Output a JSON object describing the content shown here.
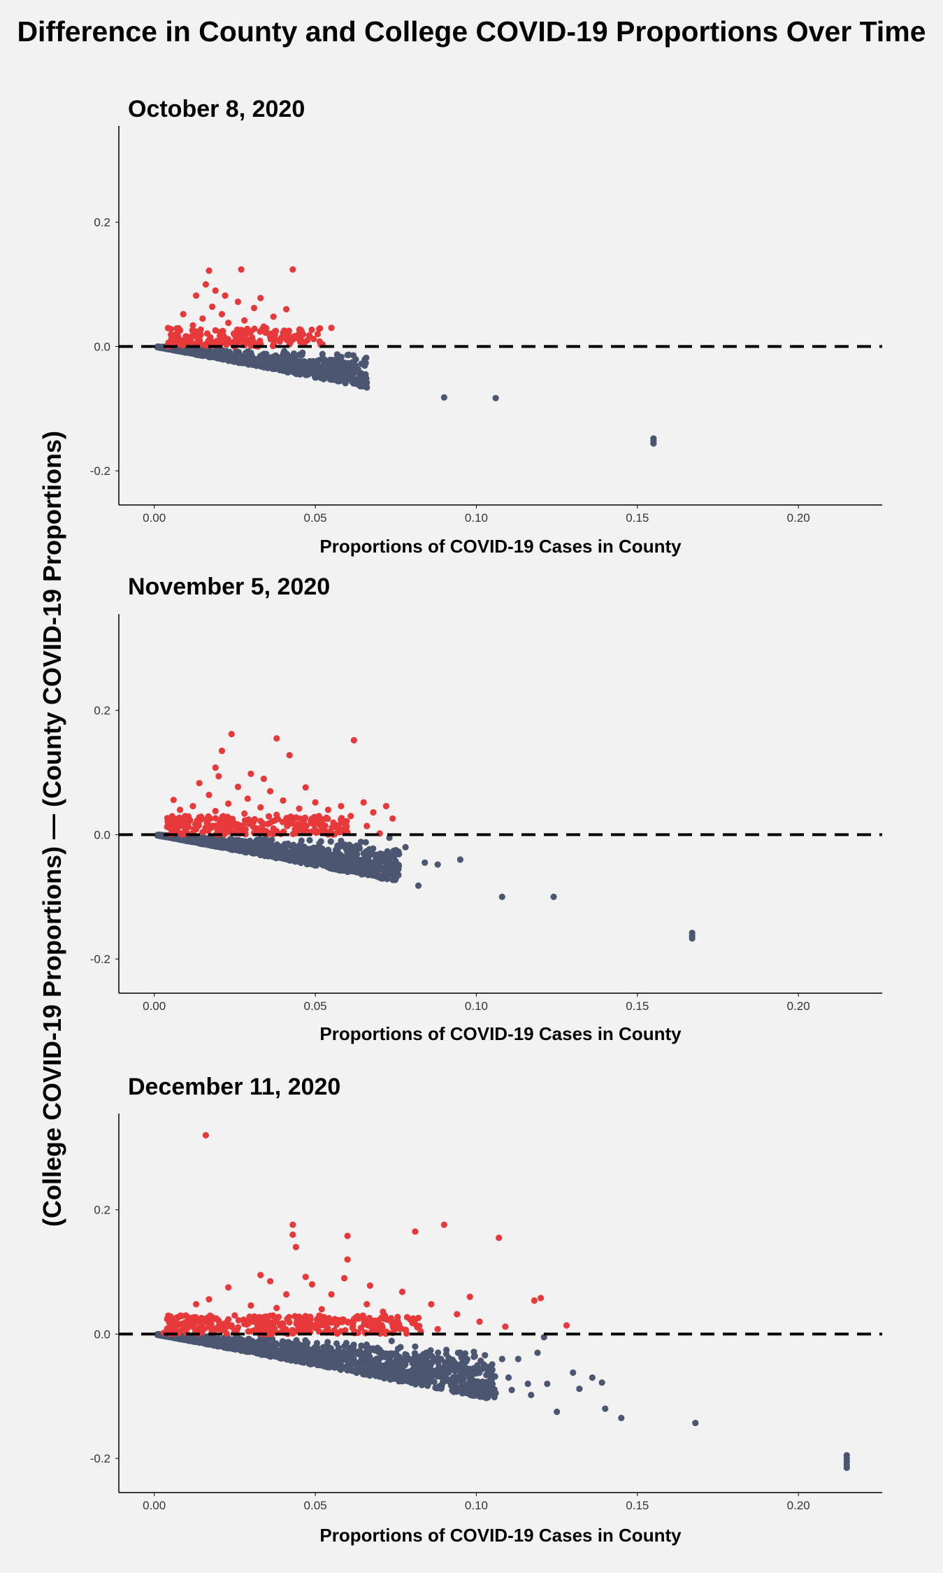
{
  "figure": {
    "title": "Difference in County and College COVID-19 Proportions Over Time",
    "ylabel": "(College COVID-19 Proportions) — (County COVID-19 Proportions)"
  },
  "colors": {
    "above_zero": "#e8393a",
    "below_zero": "#4b5670",
    "zero_line": "#000000",
    "background": "#f2f2f2"
  },
  "chart_data": [
    {
      "type": "scatter",
      "title": "October 8, 2020",
      "xlabel": "Proportions of COVID-19 Cases in County",
      "xlim": [
        -0.011,
        0.226
      ],
      "ylim": [
        -0.255,
        0.355
      ],
      "xticks": [
        0.0,
        0.05,
        0.1,
        0.15,
        0.2
      ],
      "xtick_labels": [
        "0.00",
        "0.05",
        "0.10",
        "0.15",
        "0.20"
      ],
      "yticks": [
        -0.2,
        0.0,
        0.2
      ],
      "ytick_labels": [
        "-0.2",
        "0.0",
        "0.2"
      ],
      "reference_line_y": 0.0,
      "grid": false,
      "max_x": 0.065,
      "points": [
        [
          0.017,
          0.122
        ],
        [
          0.027,
          0.124
        ],
        [
          0.043,
          0.124
        ],
        [
          0.016,
          0.1
        ],
        [
          0.019,
          0.09
        ],
        [
          0.013,
          0.082
        ],
        [
          0.022,
          0.082
        ],
        [
          0.033,
          0.078
        ],
        [
          0.026,
          0.072
        ],
        [
          0.018,
          0.064
        ],
        [
          0.031,
          0.062
        ],
        [
          0.041,
          0.06
        ],
        [
          0.009,
          0.052
        ],
        [
          0.021,
          0.052
        ],
        [
          0.037,
          0.048
        ],
        [
          0.015,
          0.045
        ],
        [
          0.028,
          0.042
        ],
        [
          0.023,
          0.038
        ],
        [
          0.012,
          0.034
        ],
        [
          0.034,
          0.032
        ],
        [
          0.055,
          0.03
        ],
        [
          0.008,
          0.026
        ],
        [
          0.019,
          0.026
        ],
        [
          0.03,
          0.024
        ],
        [
          0.04,
          0.022
        ],
        [
          0.025,
          0.02
        ],
        [
          0.014,
          0.018
        ],
        [
          0.036,
          0.016
        ],
        [
          0.011,
          0.014
        ],
        [
          0.022,
          0.014
        ],
        [
          0.045,
          0.012
        ],
        [
          0.03,
          0.01
        ],
        [
          0.006,
          0.008
        ],
        [
          0.017,
          0.008
        ],
        [
          0.039,
          0.008
        ],
        [
          0.024,
          0.006
        ],
        [
          0.009,
          0.004
        ],
        [
          0.033,
          0.004
        ],
        [
          0.042,
          0.004
        ],
        [
          0.013,
          0.003
        ],
        [
          0.02,
          0.002
        ],
        [
          0.028,
          0.002
        ],
        [
          0.046,
          -0.01
        ],
        [
          0.052,
          -0.02
        ],
        [
          0.055,
          -0.03
        ],
        [
          0.054,
          -0.034
        ],
        [
          0.056,
          -0.04
        ],
        [
          0.058,
          -0.046
        ],
        [
          0.06,
          -0.052
        ],
        [
          0.062,
          -0.055
        ],
        [
          0.064,
          -0.06
        ],
        [
          0.063,
          -0.038
        ],
        [
          0.061,
          -0.032
        ],
        [
          0.058,
          -0.028
        ],
        [
          0.09,
          -0.082
        ],
        [
          0.106,
          -0.083
        ],
        [
          0.155,
          -0.148
        ],
        [
          0.155,
          -0.152
        ],
        [
          0.155,
          -0.156
        ],
        [
          0.048,
          -0.044
        ],
        [
          0.05,
          -0.05
        ],
        [
          0.044,
          -0.036
        ]
      ]
    },
    {
      "type": "scatter",
      "title": "November 5, 2020",
      "xlabel": "Proportions of COVID-19 Cases in County",
      "xlim": [
        -0.011,
        0.226
      ],
      "ylim": [
        -0.255,
        0.355
      ],
      "xticks": [
        0.0,
        0.05,
        0.1,
        0.15,
        0.2
      ],
      "xtick_labels": [
        "0.00",
        "0.05",
        "0.10",
        "0.15",
        "0.20"
      ],
      "yticks": [
        -0.2,
        0.0,
        0.2
      ],
      "ytick_labels": [
        "-0.2",
        "0.0",
        "0.2"
      ],
      "reference_line_y": 0.0,
      "grid": false,
      "max_x": 0.075,
      "points": [
        [
          0.024,
          0.162
        ],
        [
          0.038,
          0.155
        ],
        [
          0.062,
          0.152
        ],
        [
          0.021,
          0.135
        ],
        [
          0.042,
          0.128
        ],
        [
          0.019,
          0.108
        ],
        [
          0.03,
          0.098
        ],
        [
          0.02,
          0.094
        ],
        [
          0.034,
          0.09
        ],
        [
          0.014,
          0.083
        ],
        [
          0.026,
          0.077
        ],
        [
          0.047,
          0.076
        ],
        [
          0.036,
          0.07
        ],
        [
          0.017,
          0.064
        ],
        [
          0.029,
          0.058
        ],
        [
          0.006,
          0.056
        ],
        [
          0.04,
          0.055
        ],
        [
          0.05,
          0.052
        ],
        [
          0.065,
          0.052
        ],
        [
          0.023,
          0.05
        ],
        [
          0.012,
          0.046
        ],
        [
          0.058,
          0.046
        ],
        [
          0.072,
          0.046
        ],
        [
          0.033,
          0.044
        ],
        [
          0.045,
          0.042
        ],
        [
          0.008,
          0.04
        ],
        [
          0.054,
          0.04
        ],
        [
          0.019,
          0.038
        ],
        [
          0.068,
          0.036
        ],
        [
          0.028,
          0.034
        ],
        [
          0.038,
          0.032
        ],
        [
          0.061,
          0.03
        ],
        [
          0.014,
          0.028
        ],
        [
          0.074,
          0.026
        ],
        [
          0.049,
          0.026
        ],
        [
          0.023,
          0.024
        ],
        [
          0.033,
          0.022
        ],
        [
          0.01,
          0.018
        ],
        [
          0.043,
          0.018
        ],
        [
          0.056,
          0.016
        ],
        [
          0.066,
          0.014
        ],
        [
          0.018,
          0.012
        ],
        [
          0.027,
          0.012
        ],
        [
          0.037,
          0.01
        ],
        [
          0.052,
          0.01
        ],
        [
          0.007,
          0.008
        ],
        [
          0.047,
          0.006
        ],
        [
          0.059,
          0.004
        ],
        [
          0.015,
          0.004
        ],
        [
          0.031,
          0.003
        ],
        [
          0.07,
          0.002
        ],
        [
          0.063,
          -0.04
        ],
        [
          0.068,
          -0.055
        ],
        [
          0.071,
          -0.065
        ],
        [
          0.075,
          -0.07
        ],
        [
          0.066,
          -0.05
        ],
        [
          0.06,
          -0.042
        ],
        [
          0.078,
          -0.02
        ],
        [
          0.084,
          -0.045
        ],
        [
          0.088,
          -0.048
        ],
        [
          0.095,
          -0.04
        ],
        [
          0.082,
          -0.082
        ],
        [
          0.108,
          -0.1
        ],
        [
          0.124,
          -0.1
        ],
        [
          0.167,
          -0.158
        ],
        [
          0.167,
          -0.163
        ],
        [
          0.167,
          -0.167
        ],
        [
          0.058,
          -0.01
        ],
        [
          0.054,
          -0.035
        ],
        [
          0.05,
          -0.03
        ],
        [
          0.073,
          -0.005
        ]
      ]
    },
    {
      "type": "scatter",
      "title": "December 11, 2020",
      "xlabel": "Proportions of COVID-19 Cases in County",
      "xlim": [
        -0.011,
        0.226
      ],
      "ylim": [
        -0.255,
        0.355
      ],
      "xticks": [
        0.0,
        0.05,
        0.1,
        0.15,
        0.2
      ],
      "xtick_labels": [
        "0.00",
        "0.05",
        "0.10",
        "0.15",
        "0.20"
      ],
      "yticks": [
        -0.2,
        0.0,
        0.2
      ],
      "ytick_labels": [
        "-0.2",
        "0.0",
        "0.2"
      ],
      "reference_line_y": 0.0,
      "grid": false,
      "max_x": 0.105,
      "points": [
        [
          0.016,
          0.32
        ],
        [
          0.043,
          0.176
        ],
        [
          0.09,
          0.176
        ],
        [
          0.081,
          0.165
        ],
        [
          0.06,
          0.158
        ],
        [
          0.043,
          0.16
        ],
        [
          0.044,
          0.14
        ],
        [
          0.107,
          0.155
        ],
        [
          0.06,
          0.12
        ],
        [
          0.033,
          0.095
        ],
        [
          0.047,
          0.092
        ],
        [
          0.059,
          0.09
        ],
        [
          0.036,
          0.085
        ],
        [
          0.049,
          0.08
        ],
        [
          0.067,
          0.078
        ],
        [
          0.023,
          0.075
        ],
        [
          0.077,
          0.068
        ],
        [
          0.041,
          0.064
        ],
        [
          0.055,
          0.064
        ],
        [
          0.017,
          0.056
        ],
        [
          0.098,
          0.06
        ],
        [
          0.118,
          0.054
        ],
        [
          0.12,
          0.058
        ],
        [
          0.013,
          0.048
        ],
        [
          0.03,
          0.046
        ],
        [
          0.066,
          0.048
        ],
        [
          0.086,
          0.048
        ],
        [
          0.038,
          0.042
        ],
        [
          0.052,
          0.04
        ],
        [
          0.071,
          0.036
        ],
        [
          0.094,
          0.032
        ],
        [
          0.025,
          0.03
        ],
        [
          0.045,
          0.028
        ],
        [
          0.082,
          0.026
        ],
        [
          0.062,
          0.024
        ],
        [
          0.034,
          0.022
        ],
        [
          0.101,
          0.02
        ],
        [
          0.015,
          0.018
        ],
        [
          0.057,
          0.018
        ],
        [
          0.076,
          0.016
        ],
        [
          0.128,
          0.014
        ],
        [
          0.024,
          0.014
        ],
        [
          0.04,
          0.012
        ],
        [
          0.109,
          0.012
        ],
        [
          0.05,
          0.01
        ],
        [
          0.069,
          0.01
        ],
        [
          0.088,
          0.008
        ],
        [
          0.031,
          0.006
        ],
        [
          0.047,
          0.005
        ],
        [
          0.003,
          0.002
        ],
        [
          0.01,
          0.002
        ],
        [
          0.063,
          0.002
        ],
        [
          0.074,
          0.002
        ],
        [
          0.121,
          -0.005
        ],
        [
          0.113,
          -0.04
        ],
        [
          0.106,
          -0.095
        ],
        [
          0.11,
          -0.07
        ],
        [
          0.116,
          -0.08
        ],
        [
          0.117,
          -0.098
        ],
        [
          0.125,
          -0.125
        ],
        [
          0.13,
          -0.062
        ],
        [
          0.132,
          -0.088
        ],
        [
          0.136,
          -0.07
        ],
        [
          0.139,
          -0.078
        ],
        [
          0.14,
          -0.12
        ],
        [
          0.145,
          -0.135
        ],
        [
          0.168,
          -0.143
        ],
        [
          0.215,
          -0.195
        ],
        [
          0.215,
          -0.2
        ],
        [
          0.215,
          -0.205
        ],
        [
          0.215,
          -0.21
        ],
        [
          0.215,
          -0.215
        ],
        [
          0.099,
          -0.085
        ],
        [
          0.094,
          -0.075
        ],
        [
          0.088,
          -0.068
        ],
        [
          0.091,
          -0.055
        ],
        [
          0.097,
          -0.06
        ],
        [
          0.103,
          -0.08
        ],
        [
          0.111,
          -0.09
        ],
        [
          0.122,
          -0.08
        ],
        [
          0.108,
          -0.04
        ],
        [
          0.119,
          -0.03
        ],
        [
          0.086,
          -0.035
        ],
        [
          0.083,
          -0.05
        ],
        [
          0.095,
          -0.03
        ]
      ]
    }
  ]
}
